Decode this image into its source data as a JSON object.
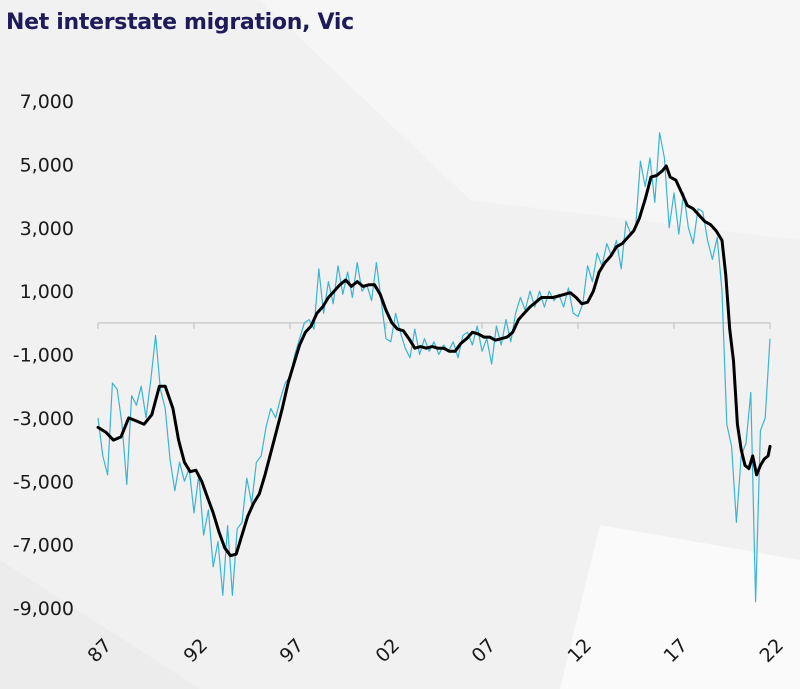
{
  "chart_data": {
    "type": "line",
    "title": "Net interstate migration, Vic",
    "xlabel": "",
    "ylabel": "",
    "ylim": [
      -9000,
      7000
    ],
    "xlim": [
      1987,
      2022
    ],
    "y_ticks": [
      7000,
      5000,
      3000,
      1000,
      -1000,
      -3000,
      -5000,
      -7000,
      -9000
    ],
    "y_tick_labels": [
      "7,000",
      "5,000",
      "3,000",
      "1,000",
      "-1,000",
      "-3,000",
      "-5,000",
      "-7,000",
      "-9,000"
    ],
    "x_ticks": [
      1987,
      1992,
      1997,
      2002,
      2007,
      2012,
      2017,
      2022
    ],
    "x_tick_labels": [
      "87",
      "92",
      "97",
      "02",
      "07",
      "12",
      "17",
      "22"
    ],
    "grid": false,
    "legend": "none",
    "colors": {
      "quarterly": "#3bb4d4",
      "trend": "#000000",
      "zero_axis": "#cccccc",
      "title": "#1f1a5a"
    },
    "series": [
      {
        "points": [
          [
            1987.0,
            -3000
          ],
          [
            1987.25,
            -4200
          ],
          [
            1987.5,
            -4800
          ],
          [
            1987.75,
            -1900
          ],
          [
            1988.0,
            -2100
          ],
          [
            1988.25,
            -3200
          ],
          [
            1988.5,
            -5100
          ],
          [
            1988.75,
            -2300
          ],
          [
            1989.0,
            -2600
          ],
          [
            1989.25,
            -2000
          ],
          [
            1989.5,
            -3000
          ],
          [
            1989.75,
            -1800
          ],
          [
            1990.0,
            -400
          ],
          [
            1990.25,
            -2100
          ],
          [
            1990.5,
            -2700
          ],
          [
            1990.75,
            -4300
          ],
          [
            1991.0,
            -5300
          ],
          [
            1991.25,
            -4400
          ],
          [
            1991.5,
            -5000
          ],
          [
            1991.75,
            -4600
          ],
          [
            1992.0,
            -6000
          ],
          [
            1992.25,
            -4800
          ],
          [
            1992.5,
            -6700
          ],
          [
            1992.75,
            -5900
          ],
          [
            1993.0,
            -7700
          ],
          [
            1993.25,
            -6900
          ],
          [
            1993.5,
            -8600
          ],
          [
            1993.75,
            -6400
          ],
          [
            1994.0,
            -8600
          ],
          [
            1994.25,
            -6500
          ],
          [
            1994.5,
            -6300
          ],
          [
            1994.75,
            -4900
          ],
          [
            1995.0,
            -5700
          ],
          [
            1995.25,
            -4400
          ],
          [
            1995.5,
            -4200
          ],
          [
            1995.75,
            -3300
          ],
          [
            1996.0,
            -2700
          ],
          [
            1996.25,
            -3000
          ],
          [
            1996.5,
            -2400
          ],
          [
            1996.75,
            -1900
          ],
          [
            1997.0,
            -1700
          ],
          [
            1997.25,
            -1000
          ],
          [
            1997.5,
            -500
          ],
          [
            1997.75,
            0
          ],
          [
            1998.0,
            100
          ],
          [
            1998.25,
            -200
          ],
          [
            1998.5,
            1700
          ],
          [
            1998.75,
            300
          ],
          [
            1999.0,
            1300
          ],
          [
            1999.25,
            600
          ],
          [
            1999.5,
            1800
          ],
          [
            1999.75,
            900
          ],
          [
            2000.0,
            1600
          ],
          [
            2000.25,
            800
          ],
          [
            2000.5,
            1900
          ],
          [
            2000.75,
            1000
          ],
          [
            2001.0,
            1200
          ],
          [
            2001.25,
            700
          ],
          [
            2001.5,
            1900
          ],
          [
            2001.75,
            700
          ],
          [
            2002.0,
            -500
          ],
          [
            2002.25,
            -600
          ],
          [
            2002.5,
            300
          ],
          [
            2002.75,
            -300
          ],
          [
            2003.0,
            -800
          ],
          [
            2003.25,
            -1100
          ],
          [
            2003.5,
            -200
          ],
          [
            2003.75,
            -1000
          ],
          [
            2004.0,
            -500
          ],
          [
            2004.25,
            -900
          ],
          [
            2004.5,
            -600
          ],
          [
            2004.75,
            -1000
          ],
          [
            2005.0,
            -700
          ],
          [
            2005.25,
            -900
          ],
          [
            2005.5,
            -600
          ],
          [
            2005.75,
            -1100
          ],
          [
            2006.0,
            -400
          ],
          [
            2006.25,
            -300
          ],
          [
            2006.5,
            -700
          ],
          [
            2006.75,
            -100
          ],
          [
            2007.0,
            -900
          ],
          [
            2007.25,
            -500
          ],
          [
            2007.5,
            -1300
          ],
          [
            2007.75,
            -100
          ],
          [
            2008.0,
            -700
          ],
          [
            2008.25,
            100
          ],
          [
            2008.5,
            -600
          ],
          [
            2008.75,
            300
          ],
          [
            2009.0,
            800
          ],
          [
            2009.25,
            400
          ],
          [
            2009.5,
            1000
          ],
          [
            2009.75,
            500
          ],
          [
            2010.0,
            1000
          ],
          [
            2010.25,
            500
          ],
          [
            2010.5,
            1000
          ],
          [
            2010.75,
            700
          ],
          [
            2011.0,
            900
          ],
          [
            2011.25,
            500
          ],
          [
            2011.5,
            1100
          ],
          [
            2011.75,
            300
          ],
          [
            2012.0,
            200
          ],
          [
            2012.25,
            600
          ],
          [
            2012.5,
            1800
          ],
          [
            2012.75,
            1300
          ],
          [
            2013.0,
            2200
          ],
          [
            2013.25,
            1800
          ],
          [
            2013.5,
            2500
          ],
          [
            2013.75,
            2100
          ],
          [
            2014.0,
            2600
          ],
          [
            2014.25,
            1700
          ],
          [
            2014.5,
            3200
          ],
          [
            2014.75,
            2800
          ],
          [
            2015.0,
            3000
          ],
          [
            2015.25,
            5100
          ],
          [
            2015.5,
            4300
          ],
          [
            2015.75,
            5200
          ],
          [
            2016.0,
            3800
          ],
          [
            2016.25,
            6000
          ],
          [
            2016.5,
            5200
          ],
          [
            2016.75,
            3000
          ],
          [
            2017.0,
            4100
          ],
          [
            2017.25,
            2800
          ],
          [
            2017.5,
            4100
          ],
          [
            2017.75,
            3000
          ],
          [
            2018.0,
            2500
          ],
          [
            2018.25,
            3600
          ],
          [
            2018.5,
            3500
          ],
          [
            2018.75,
            2600
          ],
          [
            2019.0,
            2000
          ],
          [
            2019.25,
            2700
          ],
          [
            2019.5,
            1000
          ],
          [
            2019.75,
            -3200
          ],
          [
            2020.0,
            -3900
          ],
          [
            2020.25,
            -6300
          ],
          [
            2020.5,
            -4200
          ],
          [
            2020.75,
            -3800
          ],
          [
            2021.0,
            -2200
          ],
          [
            2021.25,
            -8800
          ],
          [
            2021.5,
            -3400
          ],
          [
            2021.75,
            -3000
          ],
          [
            2022.0,
            -500
          ]
        ]
      },
      {
        "points": [
          [
            1987.0,
            -3300
          ],
          [
            1987.4,
            -3450
          ],
          [
            1987.8,
            -3700
          ],
          [
            1988.2,
            -3600
          ],
          [
            1988.6,
            -3000
          ],
          [
            1989.0,
            -3100
          ],
          [
            1989.4,
            -3200
          ],
          [
            1989.8,
            -2900
          ],
          [
            1990.2,
            -2000
          ],
          [
            1990.5,
            -2000
          ],
          [
            1990.9,
            -2700
          ],
          [
            1991.2,
            -3700
          ],
          [
            1991.5,
            -4400
          ],
          [
            1991.8,
            -4700
          ],
          [
            1992.1,
            -4650
          ],
          [
            1992.4,
            -5000
          ],
          [
            1992.7,
            -5500
          ],
          [
            1993.0,
            -6000
          ],
          [
            1993.3,
            -6600
          ],
          [
            1993.6,
            -7100
          ],
          [
            1993.9,
            -7350
          ],
          [
            1994.2,
            -7300
          ],
          [
            1994.5,
            -6700
          ],
          [
            1994.8,
            -6100
          ],
          [
            1995.1,
            -5700
          ],
          [
            1995.4,
            -5400
          ],
          [
            1995.7,
            -4800
          ],
          [
            1996.0,
            -4100
          ],
          [
            1996.3,
            -3400
          ],
          [
            1996.6,
            -2700
          ],
          [
            1996.9,
            -1900
          ],
          [
            1997.2,
            -1300
          ],
          [
            1997.5,
            -700
          ],
          [
            1997.8,
            -300
          ],
          [
            1998.1,
            -100
          ],
          [
            1998.4,
            300
          ],
          [
            1998.7,
            500
          ],
          [
            1999.0,
            800
          ],
          [
            1999.3,
            1000
          ],
          [
            1999.6,
            1200
          ],
          [
            1999.9,
            1350
          ],
          [
            2000.2,
            1150
          ],
          [
            2000.5,
            1300
          ],
          [
            2000.8,
            1150
          ],
          [
            2001.1,
            1200
          ],
          [
            2001.4,
            1200
          ],
          [
            2001.7,
            900
          ],
          [
            2002.0,
            400
          ],
          [
            2002.3,
            0
          ],
          [
            2002.6,
            -200
          ],
          [
            2002.9,
            -250
          ],
          [
            2003.2,
            -500
          ],
          [
            2003.5,
            -800
          ],
          [
            2003.8,
            -750
          ],
          [
            2004.1,
            -800
          ],
          [
            2004.4,
            -750
          ],
          [
            2004.7,
            -800
          ],
          [
            2005.0,
            -800
          ],
          [
            2005.3,
            -900
          ],
          [
            2005.6,
            -900
          ],
          [
            2005.9,
            -650
          ],
          [
            2006.2,
            -500
          ],
          [
            2006.5,
            -300
          ],
          [
            2006.8,
            -350
          ],
          [
            2007.1,
            -450
          ],
          [
            2007.4,
            -450
          ],
          [
            2007.7,
            -550
          ],
          [
            2008.0,
            -500
          ],
          [
            2008.3,
            -450
          ],
          [
            2008.6,
            -300
          ],
          [
            2008.9,
            100
          ],
          [
            2009.2,
            300
          ],
          [
            2009.5,
            500
          ],
          [
            2009.8,
            650
          ],
          [
            2010.1,
            800
          ],
          [
            2010.4,
            800
          ],
          [
            2010.7,
            800
          ],
          [
            2011.0,
            850
          ],
          [
            2011.3,
            900
          ],
          [
            2011.6,
            950
          ],
          [
            2011.9,
            800
          ],
          [
            2012.2,
            600
          ],
          [
            2012.5,
            650
          ],
          [
            2012.8,
            1000
          ],
          [
            2013.1,
            1600
          ],
          [
            2013.4,
            1900
          ],
          [
            2013.7,
            2100
          ],
          [
            2014.0,
            2400
          ],
          [
            2014.3,
            2500
          ],
          [
            2014.6,
            2700
          ],
          [
            2014.9,
            2900
          ],
          [
            2015.2,
            3300
          ],
          [
            2015.5,
            3900
          ],
          [
            2015.8,
            4600
          ],
          [
            2016.1,
            4650
          ],
          [
            2016.4,
            4800
          ],
          [
            2016.6,
            4950
          ],
          [
            2016.8,
            4600
          ],
          [
            2017.1,
            4500
          ],
          [
            2017.4,
            4100
          ],
          [
            2017.7,
            3700
          ],
          [
            2018.0,
            3600
          ],
          [
            2018.3,
            3400
          ],
          [
            2018.6,
            3200
          ],
          [
            2018.9,
            3100
          ],
          [
            2019.2,
            2900
          ],
          [
            2019.5,
            2600
          ],
          [
            2019.7,
            1500
          ],
          [
            2019.9,
            -200
          ],
          [
            2020.1,
            -1200
          ],
          [
            2020.3,
            -3200
          ],
          [
            2020.5,
            -4000
          ],
          [
            2020.7,
            -4500
          ],
          [
            2020.9,
            -4600
          ],
          [
            2021.1,
            -4200
          ],
          [
            2021.3,
            -4800
          ],
          [
            2021.5,
            -4500
          ],
          [
            2021.7,
            -4300
          ],
          [
            2021.9,
            -4200
          ],
          [
            2022.0,
            -3900
          ]
        ]
      }
    ]
  }
}
